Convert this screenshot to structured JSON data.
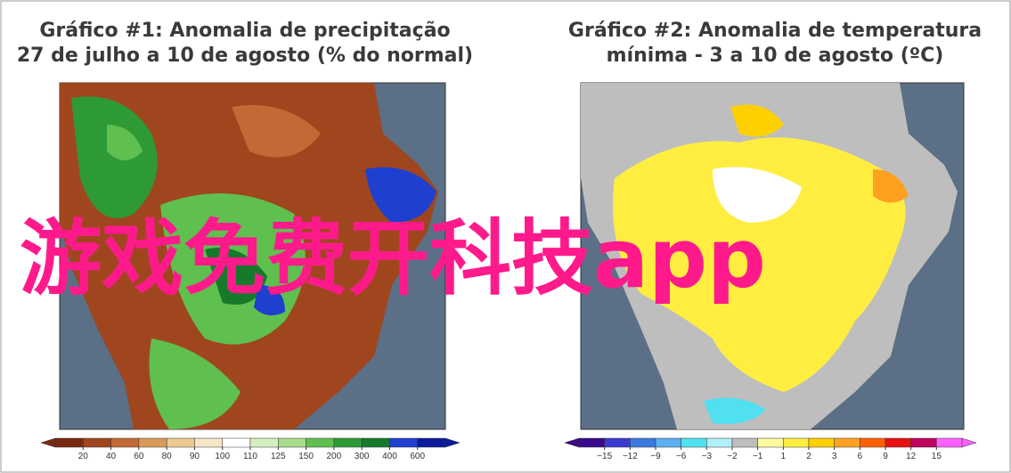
{
  "panels": [
    {
      "title": [
        "Gráfico #1: Anomalia de precipitação",
        "27 de julho a 10 de agosto (% do normal)"
      ],
      "colorbar": {
        "labels": [
          "20",
          "40",
          "60",
          "80",
          "90",
          "100",
          "110",
          "125",
          "150",
          "200",
          "300",
          "400",
          "600"
        ],
        "colors": [
          "#7a2a10",
          "#a0461e",
          "#c26a35",
          "#d99a5a",
          "#ecc993",
          "#f5e6c8",
          "#ffffff",
          "#d5efc0",
          "#a6dc8a",
          "#5fbf4f",
          "#2e9a35",
          "#167a2a",
          "#1f3fcf",
          "#0a1a9a"
        ]
      }
    },
    {
      "title": [
        "Gráfico #2: Anomalia de temperatura",
        "mínima - 3 a 10 de agosto (ºC)"
      ],
      "colorbar": {
        "labels": [
          "−15",
          "−12",
          "−9",
          "−6",
          "−3",
          "−2",
          "−1",
          "1",
          "2",
          "3",
          "6",
          "9",
          "12",
          "15"
        ],
        "colors": [
          "#3a0a8a",
          "#3a3ad0",
          "#3a7ae0",
          "#5ab0f0",
          "#50e0f0",
          "#b0f0f8",
          "#bebebe",
          "#fffaa0",
          "#ffee40",
          "#ffd000",
          "#ffa020",
          "#ff6000",
          "#e81010",
          "#c00060",
          "#ff60ff"
        ]
      }
    }
  ],
  "overlay": "游戏免费开科技app"
}
